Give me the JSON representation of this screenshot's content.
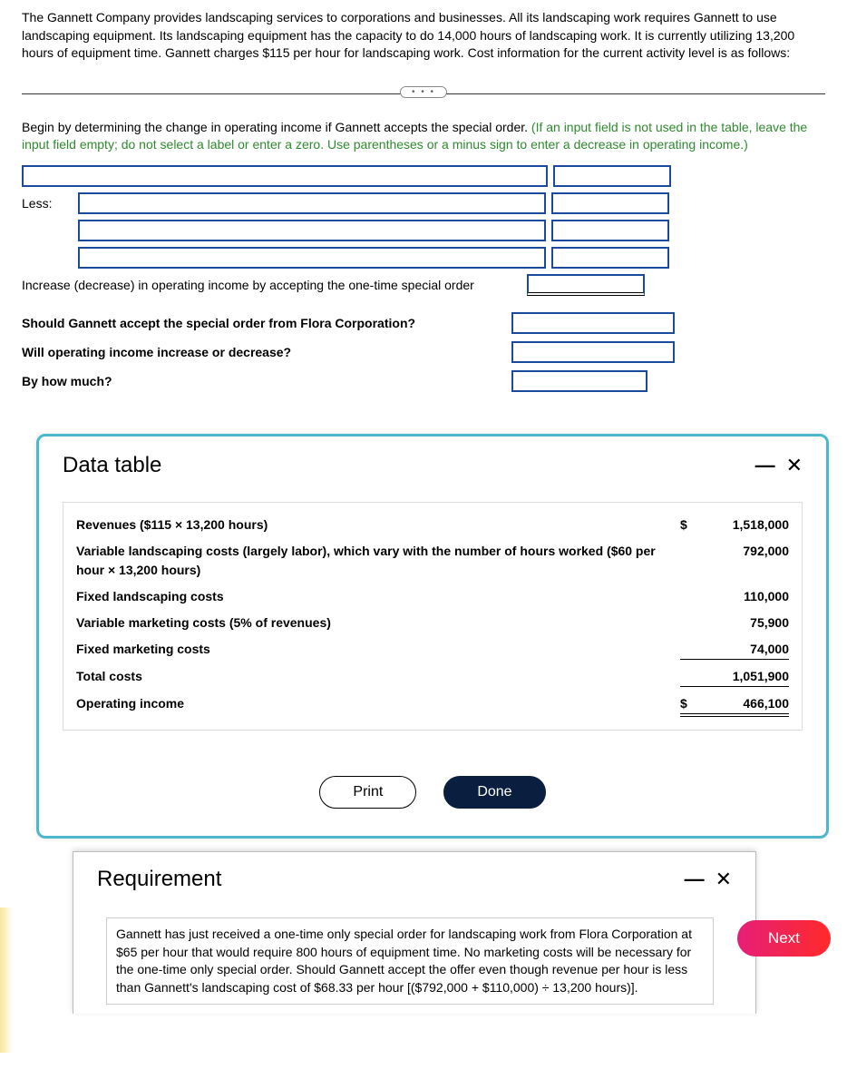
{
  "intro": "The Gannett Company provides landscaping services to corporations and businesses. All its landscaping work requires Gannett to use landscaping equipment. Its landscaping equipment has the capacity to do 14,000 hours of landscaping work. It is currently utilizing 13,200 hours of equipment time. Gannett charges $115 per hour for landscaping work. Cost information for the current activity level is as follows:",
  "divider_dots": "• • •",
  "instruction_black": "Begin by determining the change in operating income if Gannett accepts the special order. ",
  "instruction_green": "(If an input field is not used in the table, leave the input field empty; do not select a label or enter a zero. Use parentheses or a minus sign to enter a decrease in operating income.)",
  "rows": {
    "less_label": "Less:",
    "result_label": "Increase (decrease) in operating income by accepting the one-time special order"
  },
  "questions": {
    "q1": "Should Gannett accept the special order from Flora Corporation?",
    "q2": "Will operating income increase or decrease?",
    "q3": "By how much?"
  },
  "data_table": {
    "title": "Data table",
    "rows": [
      {
        "label": "Revenues ($115 × 13,200 hours)",
        "dollar": "$",
        "value": "1,518,000",
        "top": false,
        "bot": false,
        "dbl": false
      },
      {
        "label": "Variable landscaping costs (largely labor), which vary with the number of hours worked ($60 per hour × 13,200 hours)",
        "dollar": "",
        "value": "792,000",
        "top": false,
        "bot": false,
        "dbl": false
      },
      {
        "label": "Fixed landscaping costs",
        "dollar": "",
        "value": "110,000",
        "top": false,
        "bot": false,
        "dbl": false
      },
      {
        "label": "Variable marketing costs (5% of revenues)",
        "dollar": "",
        "value": "75,900",
        "top": false,
        "bot": false,
        "dbl": false
      },
      {
        "label": "Fixed marketing costs",
        "dollar": "",
        "value": "74,000",
        "top": false,
        "bot": true,
        "dbl": false
      },
      {
        "label": "Total costs",
        "dollar": "",
        "value": "1,051,900",
        "top": false,
        "bot": true,
        "dbl": false
      },
      {
        "label": "Operating income",
        "dollar": "$",
        "value": "466,100",
        "top": false,
        "bot": false,
        "dbl": true
      }
    ],
    "print": "Print",
    "done": "Done"
  },
  "requirement": {
    "title": "Requirement",
    "body": "Gannett has just received a one-time only special order for landscaping work from Flora Corporation at $65 per hour that would require 800 hours of equipment time. No marketing costs will be necessary for the one-time only special order. Should Gannett accept the offer even though revenue per hour is less than Gannett's landscaping cost of $68.33 per hour [($792,000 + $110,000) ÷ 13,200 hours)]."
  },
  "next": "Next",
  "colors": {
    "modal_border": "#4db8cc",
    "input_border": "#1a4b9c",
    "green_text": "#2e8b2e",
    "next_gradient_from": "#e61e78",
    "next_gradient_to": "#ff2a2a",
    "done_bg": "#0a1e3f"
  }
}
